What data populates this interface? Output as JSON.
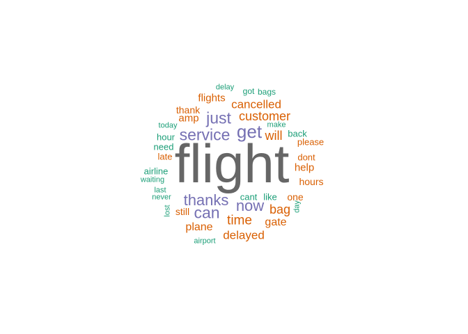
{
  "palette": {
    "gray": "#666666",
    "purple": "#7570b3",
    "orange": "#d95f02",
    "teal": "#1b9e77"
  },
  "words": {
    "flight": {
      "text": "flight",
      "color": "#666666"
    },
    "get": {
      "text": "get",
      "color": "#7570b3"
    },
    "service": {
      "text": "service",
      "color": "#7570b3"
    },
    "just": {
      "text": "just",
      "color": "#7570b3"
    },
    "thanks": {
      "text": "thanks",
      "color": "#7570b3"
    },
    "now": {
      "text": "now",
      "color": "#7570b3"
    },
    "can": {
      "text": "can",
      "color": "#7570b3"
    },
    "customer": {
      "text": "customer",
      "color": "#d95f02"
    },
    "cancelled": {
      "text": "cancelled",
      "color": "#d95f02"
    },
    "flights": {
      "text": "flights",
      "color": "#d95f02"
    },
    "thank": {
      "text": "thank",
      "color": "#d95f02"
    },
    "amp": {
      "text": "amp",
      "color": "#d95f02"
    },
    "will": {
      "text": "will",
      "color": "#d95f02"
    },
    "please": {
      "text": "please",
      "color": "#d95f02"
    },
    "late": {
      "text": "late",
      "color": "#d95f02"
    },
    "dont": {
      "text": "dont",
      "color": "#d95f02"
    },
    "help": {
      "text": "help",
      "color": "#d95f02"
    },
    "hours": {
      "text": "hours",
      "color": "#d95f02"
    },
    "one": {
      "text": "one",
      "color": "#d95f02"
    },
    "still": {
      "text": "still",
      "color": "#d95f02"
    },
    "bag": {
      "text": "bag",
      "color": "#d95f02"
    },
    "time": {
      "text": "time",
      "color": "#d95f02"
    },
    "gate": {
      "text": "gate",
      "color": "#d95f02"
    },
    "plane": {
      "text": "plane",
      "color": "#d95f02"
    },
    "delayed": {
      "text": "delayed",
      "color": "#d95f02"
    },
    "delay": {
      "text": "delay",
      "color": "#1b9e77"
    },
    "got": {
      "text": "got",
      "color": "#1b9e77"
    },
    "bags": {
      "text": "bags",
      "color": "#1b9e77"
    },
    "make": {
      "text": "make",
      "color": "#1b9e77"
    },
    "back": {
      "text": "back",
      "color": "#1b9e77"
    },
    "today": {
      "text": "today",
      "color": "#1b9e77"
    },
    "hour": {
      "text": "hour",
      "color": "#1b9e77"
    },
    "need": {
      "text": "need",
      "color": "#1b9e77"
    },
    "airline": {
      "text": "airline",
      "color": "#1b9e77"
    },
    "waiting": {
      "text": "waiting",
      "color": "#1b9e77"
    },
    "last": {
      "text": "last",
      "color": "#1b9e77"
    },
    "never": {
      "text": "never",
      "color": "#1b9e77"
    },
    "cant": {
      "text": "cant",
      "color": "#1b9e77"
    },
    "like": {
      "text": "like",
      "color": "#1b9e77"
    },
    "day": {
      "text": "day",
      "color": "#1b9e77"
    },
    "lost": {
      "text": "lost",
      "color": "#1b9e77"
    },
    "airport": {
      "text": "airport",
      "color": "#1b9e77"
    }
  }
}
